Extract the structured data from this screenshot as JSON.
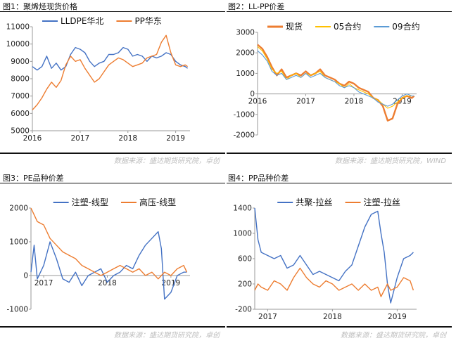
{
  "panels": [
    {
      "title": "图1：聚烯烃现货价格",
      "source": "数据来源：盛达期货研究院，卓创",
      "chart_data": {
        "type": "line",
        "ylim": [
          5000,
          11000
        ],
        "yticks": [
          5000,
          6000,
          7000,
          8000,
          9000,
          10000,
          11000
        ],
        "xlim": [
          2016.0,
          2019.3
        ],
        "xticks": [
          {
            "v": 2016,
            "label": "2016"
          },
          {
            "v": 2017,
            "label": "2017"
          },
          {
            "v": 2018,
            "label": "2018"
          },
          {
            "v": 2019,
            "label": "2019"
          }
        ],
        "zero_axis": false,
        "legend_position": "top-left",
        "series": [
          {
            "name": "LLDPE华北",
            "color": "#4472C4",
            "x": [
              2016.0,
              2016.1,
              2016.2,
              2016.3,
              2016.4,
              2016.5,
              2016.6,
              2016.7,
              2016.8,
              2016.9,
              2017.0,
              2017.1,
              2017.2,
              2017.3,
              2017.4,
              2017.5,
              2017.6,
              2017.7,
              2017.8,
              2017.9,
              2018.0,
              2018.1,
              2018.2,
              2018.3,
              2018.4,
              2018.5,
              2018.6,
              2018.7,
              2018.8,
              2018.9,
              2019.0,
              2019.1,
              2019.2,
              2019.25
            ],
            "y": [
              8700,
              8500,
              8700,
              9300,
              8600,
              8900,
              8500,
              8700,
              9400,
              9800,
              9700,
              9500,
              9000,
              8700,
              8900,
              9000,
              9400,
              9400,
              9500,
              9800,
              9700,
              9300,
              9400,
              9300,
              9000,
              9300,
              9200,
              9300,
              9500,
              9400,
              9000,
              8800,
              8700,
              8600
            ]
          },
          {
            "name": "PP华东",
            "color": "#ED7D31",
            "x": [
              2016.0,
              2016.1,
              2016.2,
              2016.3,
              2016.4,
              2016.5,
              2016.6,
              2016.7,
              2016.8,
              2016.9,
              2017.0,
              2017.1,
              2017.2,
              2017.3,
              2017.4,
              2017.5,
              2017.6,
              2017.7,
              2017.8,
              2017.9,
              2018.0,
              2018.1,
              2018.2,
              2018.3,
              2018.4,
              2018.5,
              2018.6,
              2018.7,
              2018.8,
              2018.9,
              2019.0,
              2019.1,
              2019.2,
              2019.25
            ],
            "y": [
              6200,
              6500,
              6900,
              7400,
              7800,
              7500,
              7900,
              8800,
              9300,
              9000,
              9100,
              8600,
              8200,
              7800,
              8000,
              8400,
              8800,
              9000,
              9200,
              9100,
              8900,
              8700,
              8800,
              8900,
              9200,
              9300,
              9400,
              10100,
              10500,
              9500,
              8800,
              8700,
              8800,
              8700
            ]
          }
        ]
      }
    },
    {
      "title": "图2：LL-PP价差",
      "source": "数据来源：盛达期货研究院，WIND",
      "chart_data": {
        "type": "line",
        "ylim": [
          -2000,
          3000
        ],
        "yticks": [
          -2000,
          -1000,
          0,
          1000,
          2000,
          3000
        ],
        "xlim": [
          2016.0,
          2019.3
        ],
        "xticks": [
          {
            "v": 2016,
            "label": "2016"
          },
          {
            "v": 2017,
            "label": "2017"
          },
          {
            "v": 2018,
            "label": "2018"
          },
          {
            "v": 2019,
            "label": "2019"
          }
        ],
        "zero_axis": true,
        "legend_position": "top-left",
        "series": [
          {
            "name": "现货",
            "color": "#ED7D31",
            "width": 2.4,
            "x": [
              2016.0,
              2016.1,
              2016.2,
              2016.3,
              2016.4,
              2016.5,
              2016.6,
              2016.7,
              2016.8,
              2016.9,
              2017.0,
              2017.1,
              2017.2,
              2017.3,
              2017.4,
              2017.5,
              2017.6,
              2017.7,
              2017.8,
              2017.9,
              2018.0,
              2018.1,
              2018.2,
              2018.3,
              2018.4,
              2018.5,
              2018.6,
              2018.7,
              2018.8,
              2018.9,
              2019.0,
              2019.1,
              2019.2,
              2019.25
            ],
            "y": [
              2400,
              2200,
              1800,
              1300,
              900,
              1200,
              800,
              900,
              1000,
              900,
              1100,
              900,
              1000,
              1200,
              900,
              800,
              700,
              500,
              400,
              600,
              500,
              300,
              200,
              100,
              -200,
              -300,
              -600,
              -1300,
              -1200,
              -500,
              -200,
              -100,
              -200,
              -100
            ]
          },
          {
            "name": "05合约",
            "color": "#FFC000",
            "width": 1.1,
            "x": [
              2016.0,
              2016.1,
              2016.2,
              2016.3,
              2016.4,
              2016.5,
              2016.6,
              2016.7,
              2016.8,
              2016.9,
              2017.0,
              2017.1,
              2017.2,
              2017.3,
              2017.4,
              2017.5,
              2017.6,
              2017.7,
              2017.8,
              2017.9,
              2018.0,
              2018.1,
              2018.2,
              2018.3,
              2018.4,
              2018.5,
              2018.6,
              2018.7,
              2018.8,
              2018.9,
              2019.0,
              2019.1,
              2019.2,
              2019.25
            ],
            "y": [
              2300,
              2100,
              1700,
              1200,
              1000,
              1100,
              700,
              900,
              1000,
              800,
              1000,
              900,
              1000,
              1100,
              800,
              700,
              600,
              500,
              300,
              500,
              300,
              200,
              100,
              0,
              -200,
              -300,
              -500,
              -700,
              -600,
              -400,
              -200,
              -100,
              -100,
              -100
            ]
          },
          {
            "name": "09合约",
            "color": "#5B9BD5",
            "width": 1.1,
            "x": [
              2016.0,
              2016.1,
              2016.2,
              2016.3,
              2016.4,
              2016.5,
              2016.6,
              2016.7,
              2016.8,
              2016.9,
              2017.0,
              2017.1,
              2017.2,
              2017.3,
              2017.4,
              2017.5,
              2017.6,
              2017.7,
              2017.8,
              2017.9,
              2018.0,
              2018.1,
              2018.2,
              2018.3,
              2018.4,
              2018.5,
              2018.6,
              2018.7,
              2018.8,
              2018.9,
              2019.0,
              2019.1,
              2019.2,
              2019.25
            ],
            "y": [
              2100,
              1900,
              1600,
              1100,
              900,
              1000,
              700,
              800,
              900,
              800,
              1000,
              800,
              900,
              1000,
              800,
              700,
              600,
              400,
              300,
              400,
              300,
              100,
              0,
              -100,
              -200,
              -400,
              -500,
              -600,
              -500,
              -300,
              -100,
              0,
              -100,
              -100
            ]
          }
        ]
      }
    },
    {
      "title": "图3：PE品种价差",
      "source": "数据来源：盛达期货研究院，卓创",
      "chart_data": {
        "type": "line",
        "ylim": [
          -1000,
          2000
        ],
        "yticks": [
          -1000,
          0,
          1000,
          2000
        ],
        "xlim": [
          2016.8,
          2019.3
        ],
        "xticks": [
          {
            "v": 2017,
            "label": "2017"
          },
          {
            "v": 2018,
            "label": "2018"
          },
          {
            "v": 2019,
            "label": "2019"
          }
        ],
        "zero_axis": true,
        "legend_position": "top-center",
        "series": [
          {
            "name": "注塑-线型",
            "color": "#4472C4",
            "x": [
              2016.8,
              2016.85,
              2016.9,
              2017.0,
              2017.1,
              2017.2,
              2017.3,
              2017.4,
              2017.5,
              2017.6,
              2017.7,
              2017.8,
              2017.9,
              2018.0,
              2018.1,
              2018.2,
              2018.3,
              2018.4,
              2018.5,
              2018.6,
              2018.7,
              2018.8,
              2018.85,
              2018.9,
              2019.0,
              2019.1,
              2019.2,
              2019.25
            ],
            "y": [
              100,
              900,
              -100,
              300,
              1000,
              500,
              -100,
              -200,
              100,
              -300,
              0,
              100,
              200,
              -200,
              0,
              100,
              300,
              200,
              600,
              900,
              1100,
              1300,
              800,
              -700,
              -500,
              0,
              100,
              100
            ]
          },
          {
            "name": "高压-线型",
            "color": "#ED7D31",
            "x": [
              2016.8,
              2016.85,
              2016.9,
              2017.0,
              2017.1,
              2017.2,
              2017.3,
              2017.4,
              2017.5,
              2017.6,
              2017.7,
              2017.8,
              2017.9,
              2018.0,
              2018.1,
              2018.2,
              2018.3,
              2018.4,
              2018.5,
              2018.6,
              2018.7,
              2018.8,
              2018.85,
              2018.9,
              2019.0,
              2019.1,
              2019.2,
              2019.25
            ],
            "y": [
              2000,
              1800,
              1600,
              1500,
              1100,
              900,
              700,
              600,
              500,
              300,
              200,
              100,
              0,
              100,
              200,
              300,
              200,
              100,
              200,
              0,
              100,
              -100,
              0,
              100,
              0,
              200,
              300,
              100
            ]
          }
        ]
      }
    },
    {
      "title": "图4：PP品种价差",
      "source": "数据来源：盛达期货研究院，卓创",
      "chart_data": {
        "type": "line",
        "ylim": [
          -200,
          1400
        ],
        "yticks": [
          -200,
          200,
          600,
          1000,
          1400
        ],
        "xlim": [
          2016.8,
          2019.3
        ],
        "xticks": [
          {
            "v": 2017,
            "label": "2017"
          },
          {
            "v": 2018,
            "label": "2018"
          },
          {
            "v": 2019,
            "label": "2019"
          }
        ],
        "zero_axis": false,
        "legend_position": "top-center",
        "series": [
          {
            "name": "共聚-拉丝",
            "color": "#4472C4",
            "x": [
              2016.8,
              2016.85,
              2016.9,
              2017.0,
              2017.1,
              2017.2,
              2017.3,
              2017.4,
              2017.5,
              2017.6,
              2017.7,
              2017.8,
              2017.9,
              2018.0,
              2018.1,
              2018.2,
              2018.3,
              2018.4,
              2018.5,
              2018.6,
              2018.7,
              2018.75,
              2018.8,
              2018.85,
              2018.9,
              2019.0,
              2019.1,
              2019.2,
              2019.25
            ],
            "y": [
              1400,
              900,
              700,
              650,
              600,
              650,
              450,
              500,
              650,
              500,
              350,
              400,
              350,
              300,
              250,
              400,
              500,
              800,
              1100,
              1300,
              1350,
              1000,
              700,
              200,
              -100,
              300,
              600,
              650,
              700
            ]
          },
          {
            "name": "注塑-拉丝",
            "color": "#ED7D31",
            "x": [
              2016.8,
              2016.85,
              2016.9,
              2017.0,
              2017.1,
              2017.2,
              2017.3,
              2017.4,
              2017.5,
              2017.6,
              2017.7,
              2017.8,
              2017.9,
              2018.0,
              2018.1,
              2018.2,
              2018.3,
              2018.4,
              2018.5,
              2018.6,
              2018.7,
              2018.75,
              2018.8,
              2018.85,
              2018.9,
              2019.0,
              2019.1,
              2019.2,
              2019.25
            ],
            "y": [
              100,
              200,
              150,
              100,
              250,
              200,
              100,
              300,
              450,
              300,
              200,
              150,
              250,
              200,
              100,
              150,
              200,
              100,
              200,
              100,
              150,
              0,
              100,
              200,
              100,
              150,
              300,
              250,
              100
            ]
          }
        ]
      }
    }
  ]
}
